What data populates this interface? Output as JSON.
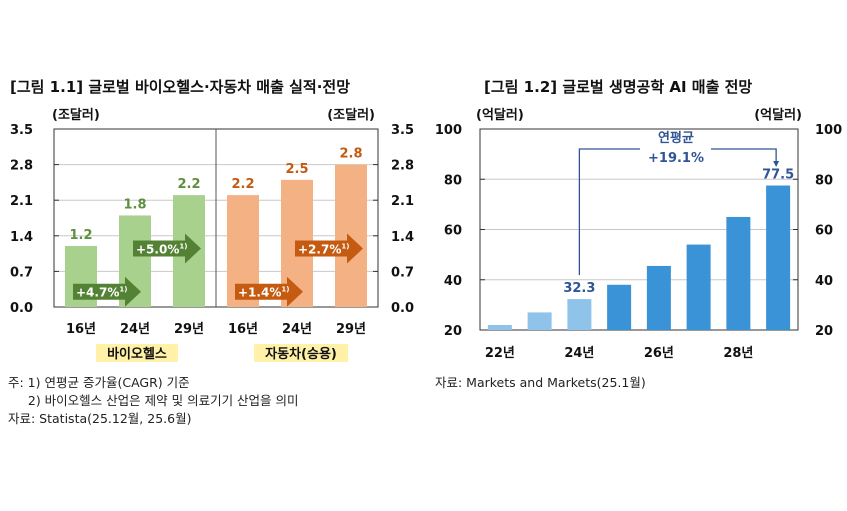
{
  "colors": {
    "bio": "#a9d18e",
    "bio_dark": "#548235",
    "bio_label": "#5f8f3e",
    "auto": "#f4b183",
    "auto_dark": "#c55a11",
    "auto_label": "#c55a11",
    "ai_light": "#8fc3ea",
    "ai": "#3a93d6",
    "ai_label": "#2f5597",
    "highlight": "#fff2a8"
  },
  "chart_data": [
    {
      "type": "bar",
      "title": "[그림 1.1] 글로벌 바이오헬스·자동차 매출 실적·전망",
      "unit_left": "(조달러)",
      "unit_right": "(조달러)",
      "ylim": [
        0,
        3.5
      ],
      "yticks": [
        "0.0",
        "0.7",
        "1.4",
        "2.1",
        "2.8",
        "3.5"
      ],
      "groups": [
        {
          "name": "바이오헬스",
          "categories": [
            "16년",
            "24년",
            "29년"
          ],
          "values": [
            1.2,
            1.8,
            2.2
          ],
          "labels": [
            "1.2",
            "1.8",
            "2.2"
          ],
          "cagr": [
            {
              "text": "+4.7%",
              "sup": "1)"
            },
            {
              "text": "+5.0%",
              "sup": "1)"
            }
          ]
        },
        {
          "name": "자동차(승용)",
          "categories": [
            "16년",
            "24년",
            "29년"
          ],
          "values": [
            2.2,
            2.5,
            2.8
          ],
          "labels": [
            "2.2",
            "2.5",
            "2.8"
          ],
          "cagr": [
            {
              "text": "+1.4%",
              "sup": "1)"
            },
            {
              "text": "+2.7%",
              "sup": "1)"
            }
          ]
        }
      ],
      "notes": [
        "주: 1) 연평균 증가율(CAGR) 기준",
        "     2) 바이오헬스 산업은 제약 및 의료기기 산업을 의미",
        "자료: Statista(25.12월, 25.6월)"
      ]
    },
    {
      "type": "bar",
      "title": "[그림 1.2] 글로벌 생명공학 AI 매출 전망",
      "unit_left": "(억달러)",
      "unit_right": "(억달러)",
      "ylim": [
        20,
        100
      ],
      "yticks": [
        "20",
        "40",
        "60",
        "80",
        "100"
      ],
      "x": [
        "22",
        "23",
        "24",
        "25",
        "26",
        "27",
        "28",
        "29"
      ],
      "xtick_labels": [
        "22년",
        "24년",
        "26년",
        "28년"
      ],
      "values": [
        22,
        27,
        32.3,
        38,
        45.5,
        54,
        65,
        77.5
      ],
      "actual_count": 3,
      "data_labels": {
        "start": "32.3",
        "end": "77.5"
      },
      "annotation": {
        "line1": "연평균",
        "line2": "+19.1%"
      },
      "notes": [
        "자료: Markets and Markets(25.1월)"
      ]
    }
  ]
}
